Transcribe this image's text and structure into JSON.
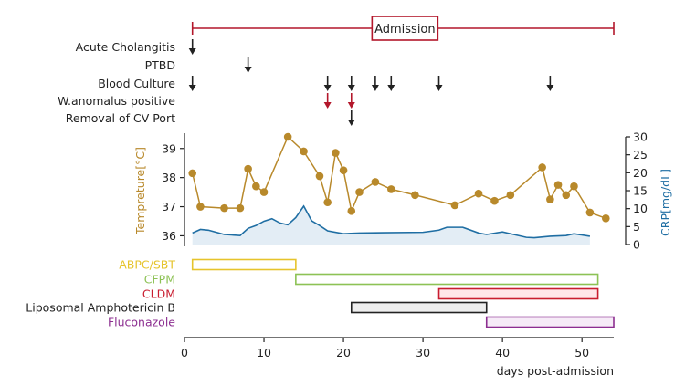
{
  "chart_data": {
    "type": "line",
    "title": "",
    "xlabel": "days post-admission",
    "ylabel": "Tempreture[°C]",
    "ylabel_right": "CRP[mg/dL]",
    "xlim": [
      0,
      54
    ],
    "xticks": [
      0,
      10,
      20,
      30,
      40,
      50
    ],
    "ylim": [
      35.7,
      39.4
    ],
    "yticks": [
      36,
      37,
      38,
      39
    ],
    "y2lim": [
      0,
      30
    ],
    "y2ticks": [
      0,
      5,
      10,
      15,
      20,
      25,
      30
    ],
    "admission": {
      "label": "Admission",
      "start": 1,
      "end": 54
    },
    "events": [
      {
        "label": "Acute Cholangitis",
        "days": [
          1
        ],
        "color": "#222222"
      },
      {
        "label": "PTBD",
        "days": [
          8
        ],
        "color": "#222222"
      },
      {
        "label": "Blood Culture",
        "days": [
          1,
          18,
          21,
          24,
          26,
          32,
          46
        ],
        "color": "#222222"
      },
      {
        "label": "W.anomalus positive",
        "days": [
          18,
          21
        ],
        "color": "#b3172b"
      },
      {
        "label": "Removal of CV Port",
        "days": [
          21
        ],
        "color": "#222222"
      }
    ],
    "series": [
      {
        "name": "Temperature",
        "axis": "left",
        "color": "#b8892b",
        "x": [
          1,
          2,
          5,
          7,
          8,
          9,
          10,
          13,
          15,
          17,
          18,
          19,
          20,
          21,
          22,
          24,
          26,
          29,
          34,
          37,
          39,
          41,
          45,
          46,
          47,
          48,
          49,
          51,
          53
        ],
        "values": [
          38.15,
          37.0,
          36.95,
          36.95,
          38.3,
          37.7,
          37.5,
          39.4,
          38.9,
          38.05,
          37.15,
          38.85,
          38.25,
          36.85,
          37.5,
          37.85,
          37.6,
          37.4,
          37.05,
          37.45,
          37.2,
          37.4,
          38.35,
          37.25,
          37.75,
          37.4,
          37.7,
          36.8,
          36.6
        ]
      },
      {
        "name": "CRP",
        "axis": "right",
        "color": "#1f6ea3",
        "fill": "#e3edf5",
        "x": [
          1,
          2,
          3,
          5,
          7,
          8,
          9,
          10,
          11,
          12,
          13,
          14,
          15,
          16,
          17,
          18,
          20,
          22,
          25,
          30,
          32,
          33,
          35,
          37,
          38,
          40,
          43,
          44,
          46,
          48,
          49,
          51
        ],
        "values": [
          3.2,
          4.2,
          4.0,
          2.8,
          2.5,
          4.5,
          5.3,
          6.5,
          7.2,
          6.0,
          5.5,
          7.5,
          10.7,
          6.6,
          5.3,
          3.8,
          3.0,
          3.2,
          3.3,
          3.4,
          4.0,
          4.8,
          4.8,
          3.2,
          2.8,
          3.5,
          2.0,
          1.9,
          2.3,
          2.5,
          3.0,
          2.3
        ]
      }
    ],
    "drugs": [
      {
        "label": "ABPC/SBT",
        "start": 1,
        "end": 14,
        "color": "#e6c42c",
        "fill": "#ffffff"
      },
      {
        "label": "CFPM",
        "start": 14,
        "end": 52,
        "color": "#8dc255",
        "fill": "#ffffff"
      },
      {
        "label": "CLDM",
        "start": 32,
        "end": 52,
        "color": "#c91d30",
        "fill": "#ffe6ea"
      },
      {
        "label": "Liposomal Amphotericin B",
        "start": 21,
        "end": 38,
        "color": "#222222",
        "fill": "#eeeeee"
      },
      {
        "label": "Fluconazole",
        "start": 38,
        "end": 54,
        "color": "#8c2e90",
        "fill": "#f6ebf7"
      }
    ]
  }
}
